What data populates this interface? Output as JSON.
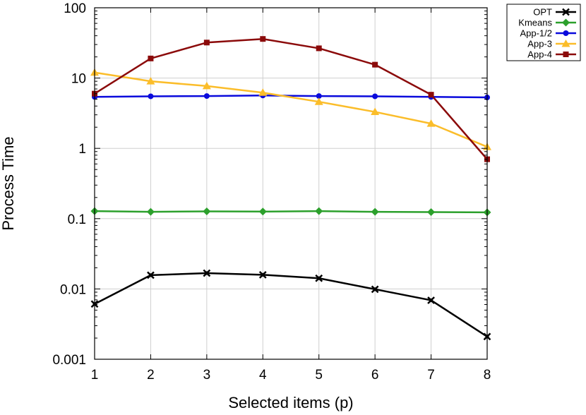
{
  "chart_data": {
    "type": "line",
    "title": "",
    "xlabel": "Selected items (p)",
    "ylabel": "Process Time",
    "x": [
      1,
      2,
      3,
      4,
      5,
      6,
      7,
      8
    ],
    "xlim": [
      1,
      8
    ],
    "ylim": [
      0.001,
      100
    ],
    "yscale": "log",
    "grid": true,
    "legend_position": "top-right outside plot",
    "x_tick_labels": [
      "1",
      "2",
      "3",
      "4",
      "5",
      "6",
      "7",
      "8"
    ],
    "y_ticks": [
      0.001,
      0.01,
      0.1,
      1,
      10,
      100
    ],
    "y_tick_labels": [
      "0.001",
      "0.01",
      "0.1",
      "1",
      "10",
      "100"
    ],
    "series": [
      {
        "name": "OPT",
        "color": "#000000",
        "marker": "x-square",
        "values": [
          0.0061,
          0.0157,
          0.0168,
          0.0159,
          0.0142,
          0.0099,
          0.0069,
          0.0021
        ]
      },
      {
        "name": "Kmeans",
        "color": "#2ca02c",
        "marker": "diamond",
        "values": [
          0.128,
          0.125,
          0.127,
          0.126,
          0.128,
          0.125,
          0.124,
          0.123
        ]
      },
      {
        "name": "App-1/2",
        "color": "#0a0adc",
        "marker": "circle",
        "values": [
          5.4,
          5.5,
          5.55,
          5.65,
          5.55,
          5.5,
          5.4,
          5.3
        ]
      },
      {
        "name": "App-3",
        "color": "#fbbd2a",
        "marker": "triangle",
        "values": [
          12.0,
          9.0,
          7.7,
          6.2,
          4.6,
          3.3,
          2.25,
          1.05
        ]
      },
      {
        "name": "App-4",
        "color": "#8b0a0a",
        "marker": "square",
        "values": [
          6.0,
          19.0,
          32.0,
          36.0,
          26.5,
          15.5,
          5.8,
          0.7
        ]
      }
    ]
  }
}
